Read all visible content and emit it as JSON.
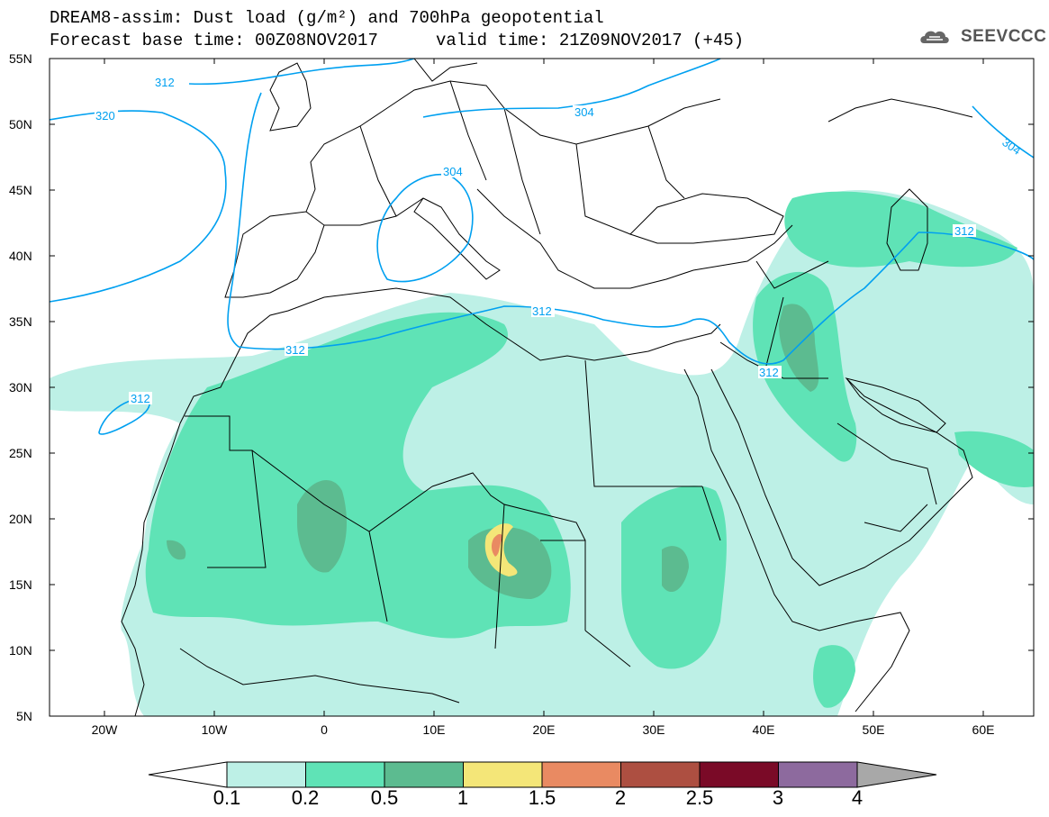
{
  "header": {
    "title_line1": "DREAM8-assim: Dust load (g/m²) and 700hPa geopotential",
    "title_line2a": "Forecast base time: 00Z08NOV2017",
    "title_line2b": "valid time: 21Z09NOV2017 (+45)",
    "logo_text": "SEEVCCC"
  },
  "map": {
    "lat_ticks": [
      "55N",
      "50N",
      "45N",
      "40N",
      "35N",
      "30N",
      "25N",
      "20N",
      "15N",
      "10N",
      "5N"
    ],
    "lon_ticks": [
      "20W",
      "10W",
      "0",
      "10E",
      "20E",
      "30E",
      "40E",
      "50E",
      "60E"
    ],
    "contour_labels": [
      "312",
      "320",
      "304",
      "304",
      "304",
      "312",
      "312",
      "312",
      "312",
      "312"
    ],
    "colors": {
      "land_boundary": "#000000",
      "contour": "#00a0f0"
    }
  },
  "legend": {
    "levels": [
      "0.1",
      "0.2",
      "0.5",
      "1",
      "1.5",
      "2",
      "2.5",
      "3",
      "4"
    ],
    "colors": [
      "#bdf0e6",
      "#5fe3b6",
      "#5cbb90",
      "#f4e678",
      "#e98a62",
      "#ad4f41",
      "#7a0a27",
      "#8d6a9e",
      "#a8a8a8"
    ]
  }
}
